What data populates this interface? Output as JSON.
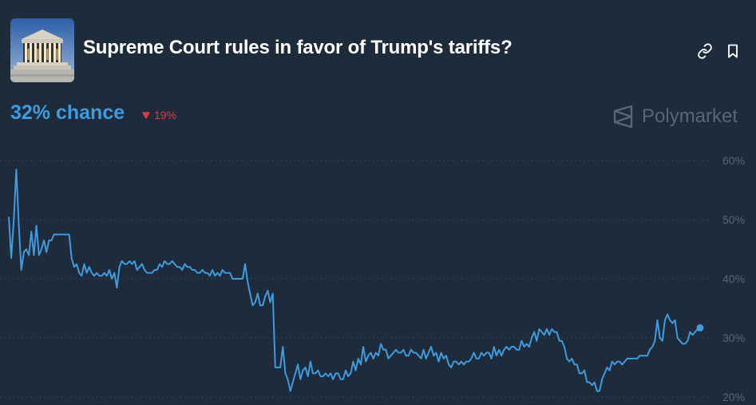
{
  "market": {
    "title": "Supreme Court rules in favor of Trump's tariffs?",
    "chance_label": "32% chance",
    "change_label": "19%",
    "thumbnail_icon": "supreme-court-building",
    "brand_name": "Polymarket"
  },
  "colors": {
    "background": "#1d2b3a",
    "line": "#3d9be0",
    "negative": "#e23b43",
    "muted": "#56677a"
  },
  "chart_data": {
    "type": "line",
    "y_tick_labels": [
      "60%",
      "50%",
      "40%",
      "30%",
      "20%"
    ],
    "y_ticks": [
      60,
      50,
      40,
      30,
      20
    ],
    "ylim": [
      20,
      62
    ],
    "grid": true,
    "series": [
      {
        "values": [
          50.5,
          43.5,
          50,
          58.5,
          49,
          41.5,
          44.5,
          45,
          44,
          48,
          44,
          49,
          44,
          45,
          46.5,
          44.5,
          46.5,
          46.5,
          47.5,
          47.5,
          47.5,
          47.5,
          47.5,
          47.5,
          47.5,
          43.5,
          42,
          42.5,
          41,
          40.5,
          42.5,
          41,
          42,
          41,
          40.5,
          41,
          40.5,
          40.5,
          41,
          40.5,
          41.5,
          40,
          41,
          38.5,
          42,
          43,
          42.5,
          42.5,
          43,
          42.5,
          43,
          41.5,
          42,
          42.5,
          41.5,
          41,
          41,
          41,
          41.5,
          41.5,
          42.5,
          42,
          43,
          42.5,
          42.5,
          43,
          42.5,
          42,
          42,
          41.5,
          42.5,
          42,
          42,
          41.5,
          41.5,
          41,
          41,
          41.5,
          41,
          41,
          40.5,
          41.5,
          40.5,
          41,
          40.5,
          41.5,
          41,
          41,
          41,
          40,
          40,
          40,
          40,
          40,
          42.5,
          39.5,
          37.5,
          35.5,
          36,
          37.5,
          35.5,
          35.5,
          37,
          38,
          36,
          37.5,
          25,
          25,
          25,
          28.5,
          24,
          23,
          21,
          22.5,
          24,
          25.5,
          23,
          24.5,
          25,
          23.5,
          26,
          24,
          24,
          24.5,
          23.5,
          23.5,
          24,
          23.5,
          24,
          23,
          24,
          24,
          23,
          23,
          24.5,
          23.5,
          24,
          26,
          24.5,
          26.5,
          25.5,
          28.5,
          26,
          27,
          27.5,
          26.5,
          27.5,
          27,
          29,
          28,
          28,
          26.5,
          27,
          27.5,
          28,
          27.5,
          27.5,
          28,
          27,
          27,
          28,
          27.5,
          27.5,
          27,
          26.5,
          28,
          26.5,
          27.5,
          28.5,
          27,
          27.5,
          26,
          27.5,
          26.5,
          27,
          25.5,
          25,
          26,
          26,
          25.5,
          26,
          25.5,
          26,
          26,
          26.5,
          27.5,
          26.5,
          26.5,
          27.5,
          27,
          27.5,
          27.5,
          26.5,
          28.5,
          27,
          28,
          27,
          28,
          28.5,
          28,
          28.5,
          28.5,
          28,
          28,
          29.5,
          28.5,
          29,
          28.5,
          30,
          31,
          29.5,
          31.5,
          31,
          30.5,
          31.5,
          30.5,
          31.5,
          31,
          31,
          29.5,
          29.5,
          28.5,
          26.5,
          26,
          26.5,
          25.5,
          25.5,
          24,
          24,
          24.5,
          22.5,
          22.5,
          22,
          22.5,
          21,
          21,
          23,
          24,
          25,
          24.5,
          26,
          25.5,
          26,
          26,
          25.5,
          26,
          26.5,
          26.5,
          26.5,
          26.5,
          26.5,
          27,
          27,
          27,
          27,
          28,
          28.5,
          29.5,
          33,
          30,
          29.5,
          33,
          34,
          33,
          32.5,
          33,
          30,
          29.5,
          29,
          29,
          29.5,
          31,
          30.5,
          31,
          31.5,
          31.7
        ]
      }
    ]
  }
}
